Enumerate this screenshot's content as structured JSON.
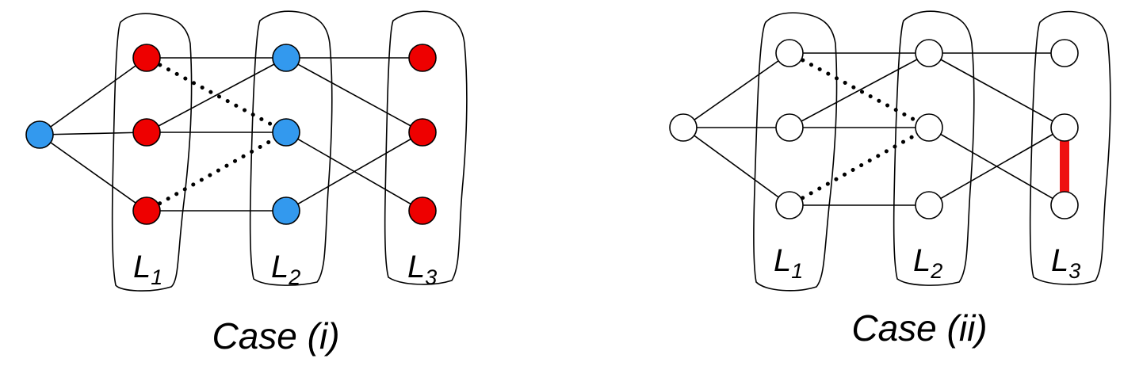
{
  "colors": {
    "red": "#ee0000",
    "blue": "#3399ee",
    "white": "#ffffff",
    "conflict": "#ee1111"
  },
  "panels": [
    {
      "id": "case-i",
      "caption": "Case (i)",
      "layers": [
        {
          "letter": "L",
          "sub": "1"
        },
        {
          "letter": "L",
          "sub": "2"
        },
        {
          "letter": "L",
          "sub": "3"
        }
      ],
      "nodes": [
        {
          "id": "r",
          "fill": "blue"
        },
        {
          "id": "a1",
          "fill": "red"
        },
        {
          "id": "a2",
          "fill": "red"
        },
        {
          "id": "a3",
          "fill": "red"
        },
        {
          "id": "b1",
          "fill": "blue"
        },
        {
          "id": "b2",
          "fill": "blue"
        },
        {
          "id": "b3",
          "fill": "blue"
        },
        {
          "id": "c1",
          "fill": "red"
        },
        {
          "id": "c2",
          "fill": "red"
        },
        {
          "id": "c3",
          "fill": "red"
        }
      ],
      "edges": [
        {
          "from": "r",
          "to": "a1"
        },
        {
          "from": "r",
          "to": "a2"
        },
        {
          "from": "r",
          "to": "a3"
        },
        {
          "from": "a1",
          "to": "b1"
        },
        {
          "from": "a2",
          "to": "b1"
        },
        {
          "from": "a2",
          "to": "b2"
        },
        {
          "from": "a3",
          "to": "b3"
        },
        {
          "from": "b1",
          "to": "c1"
        },
        {
          "from": "b1",
          "to": "c2"
        },
        {
          "from": "b2",
          "to": "c3"
        },
        {
          "from": "b3",
          "to": "c2"
        }
      ],
      "dotted_edges": [
        {
          "from": "a1",
          "to": "b2"
        },
        {
          "from": "a3",
          "to": "b2"
        }
      ],
      "conflict_edges": []
    },
    {
      "id": "case-ii",
      "caption": "Case (ii)",
      "layers": [
        {
          "letter": "L",
          "sub": "1"
        },
        {
          "letter": "L",
          "sub": "2"
        },
        {
          "letter": "L",
          "sub": "3"
        }
      ],
      "nodes": [
        {
          "id": "r",
          "fill": "white"
        },
        {
          "id": "a1",
          "fill": "white"
        },
        {
          "id": "a2",
          "fill": "white"
        },
        {
          "id": "a3",
          "fill": "white"
        },
        {
          "id": "b1",
          "fill": "white"
        },
        {
          "id": "b2",
          "fill": "white"
        },
        {
          "id": "b3",
          "fill": "white"
        },
        {
          "id": "c1",
          "fill": "white"
        },
        {
          "id": "c2",
          "fill": "white"
        },
        {
          "id": "c3",
          "fill": "white"
        }
      ],
      "edges": [
        {
          "from": "r",
          "to": "a1"
        },
        {
          "from": "r",
          "to": "a2"
        },
        {
          "from": "r",
          "to": "a3"
        },
        {
          "from": "a1",
          "to": "b1"
        },
        {
          "from": "a2",
          "to": "b1"
        },
        {
          "from": "a2",
          "to": "b2"
        },
        {
          "from": "a3",
          "to": "b3"
        },
        {
          "from": "b1",
          "to": "c1"
        },
        {
          "from": "b1",
          "to": "c2"
        },
        {
          "from": "b2",
          "to": "c3"
        },
        {
          "from": "b3",
          "to": "c2"
        }
      ],
      "dotted_edges": [
        {
          "from": "a1",
          "to": "b2"
        },
        {
          "from": "a3",
          "to": "b2"
        }
      ],
      "conflict_edges": [
        {
          "from": "c2",
          "to": "c3",
          "color": "conflict"
        }
      ]
    }
  ]
}
